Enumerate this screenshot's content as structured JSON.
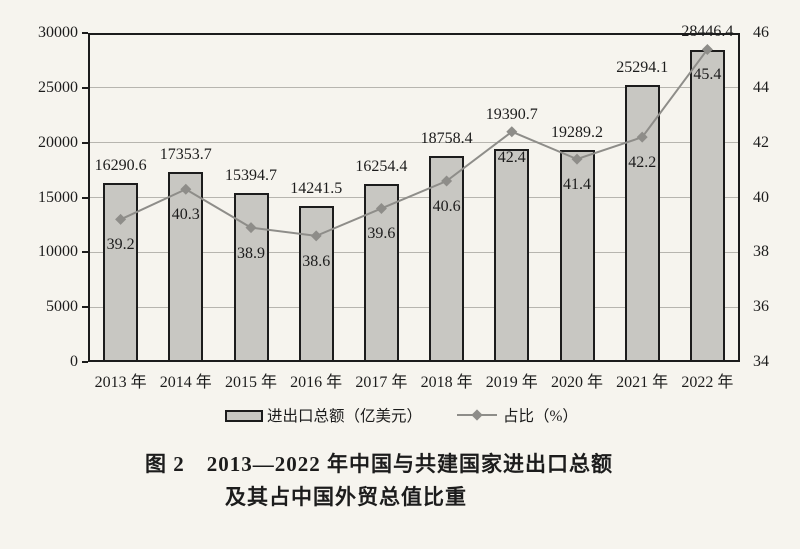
{
  "figure": {
    "caption_line1": "图 2　2013—2022 年中国与共建国家进出口总额",
    "caption_line2": "及其占中国外贸总值比重"
  },
  "chart_data": {
    "type": "bar",
    "title": "图 2 2013—2022 年中国与共建国家进出口总额及其占中国外贸总值比重",
    "categories": [
      "2013 年",
      "2014 年",
      "2015 年",
      "2016 年",
      "2017 年",
      "2018 年",
      "2019 年",
      "2020 年",
      "2021 年",
      "2022 年"
    ],
    "series": [
      {
        "name": "进出口总额（亿美元）",
        "type": "bar",
        "axis": "left",
        "values": [
          16290.6,
          17353.7,
          15394.7,
          14241.5,
          16254.4,
          18758.4,
          19390.7,
          19289.2,
          25294.1,
          28446.4
        ]
      },
      {
        "name": "占比（%）",
        "type": "line",
        "axis": "right",
        "values": [
          39.2,
          40.3,
          38.9,
          38.6,
          39.6,
          40.6,
          42.4,
          41.4,
          42.2,
          45.4
        ]
      }
    ],
    "left_axis": {
      "min": 0,
      "max": 30000,
      "ticks": [
        0,
        5000,
        10000,
        15000,
        20000,
        25000,
        30000
      ]
    },
    "right_axis": {
      "min": 34,
      "max": 46,
      "ticks": [
        34,
        36,
        38,
        40,
        42,
        44,
        46
      ]
    },
    "grid": true,
    "legend_position": "bottom",
    "colors": {
      "bar_fill": "#c8c7c2",
      "bar_border": "#1c1c1c",
      "line": "#8e8d89",
      "grid": "#b7b5af",
      "text": "#1c1c1c",
      "background": "#f6f4ee"
    }
  }
}
